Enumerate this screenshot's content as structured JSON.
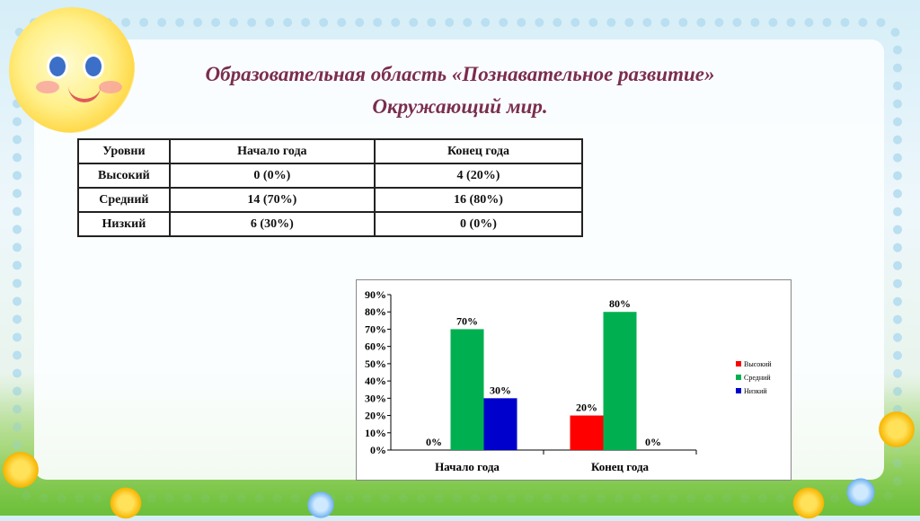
{
  "title": {
    "line1": "Образовательная область «Познавательное развитие»",
    "line2": "Окружающий мир."
  },
  "table": {
    "headers": [
      "Уровни",
      "Начало года",
      "Конец года"
    ],
    "rows": [
      [
        "Высокий",
        "0  (0%)",
        "4 (20%)"
      ],
      [
        "Средний",
        "14 (70%)",
        "16  (80%)"
      ],
      [
        "Низкий",
        "6 (30%)",
        "0 (0%)"
      ]
    ]
  },
  "chart_data": {
    "type": "bar",
    "categories": [
      "Начало года",
      "Конец года"
    ],
    "series": [
      {
        "name": "Высокий",
        "color": "#ff0000",
        "values": [
          0,
          20
        ],
        "labels": [
          "0%",
          "20%"
        ]
      },
      {
        "name": "Средний",
        "color": "#00b050",
        "values": [
          70,
          80
        ],
        "labels": [
          "70%",
          "80%"
        ]
      },
      {
        "name": "Низкий",
        "color": "#0000cc",
        "values": [
          30,
          0
        ],
        "labels": [
          "30%",
          "0%"
        ]
      }
    ],
    "yticks": [
      "0%",
      "10%",
      "20%",
      "30%",
      "40%",
      "50%",
      "60%",
      "70%",
      "80%",
      "90%"
    ],
    "ylim": [
      0,
      90
    ],
    "grid": false,
    "legend_position": "right"
  }
}
